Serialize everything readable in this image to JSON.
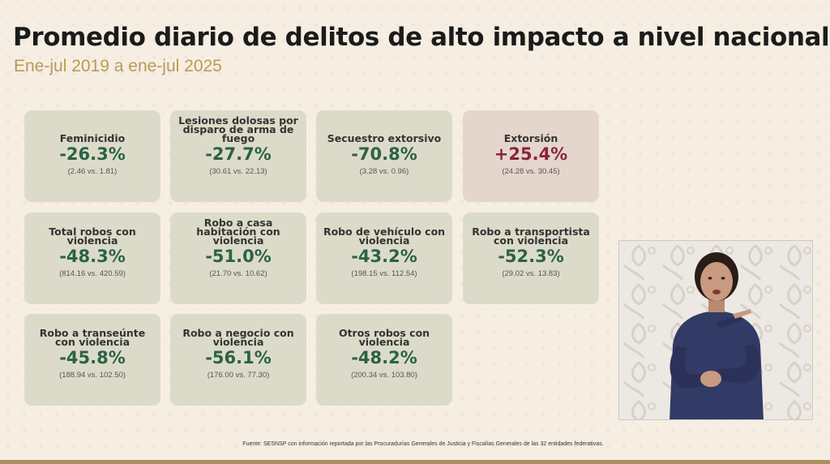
{
  "header": {
    "title": "Promedio diario de delitos de alto impacto a nivel nacional",
    "subtitle": "Ene-jul 2019 a ene-jul 2025"
  },
  "cards": [
    {
      "label": "Feminicidio",
      "value": "-26.3%",
      "detail": "(2.46 vs. 1.81)"
    },
    {
      "label": "Lesiones dolosas por disparo de arma de fuego",
      "value": "-27.7%",
      "detail": "(30.61 vs. 22.13)"
    },
    {
      "label": "Secuestro extorsivo",
      "value": "-70.8%",
      "detail": "(3.28 vs. 0.96)"
    },
    {
      "label": "Extorsión",
      "value": "+25.4%",
      "detail": "(24.28 vs. 30.45)"
    },
    {
      "label": "Total robos con violencia",
      "value": "-48.3%",
      "detail": "(814.16 vs. 420.59)"
    },
    {
      "label": "Robo a casa habitación con violencia",
      "value": "-51.0%",
      "detail": "(21.70 vs. 10.62)"
    },
    {
      "label": "Robo de vehículo con violencia",
      "value": "-43.2%",
      "detail": "(198.15 vs. 112.54)"
    },
    {
      "label": "Robo a transportista con violencia",
      "value": "-52.3%",
      "detail": "(29.02 vs. 13.83)"
    },
    {
      "label": "Robo a transeúnte con violencia",
      "value": "-45.8%",
      "detail": "(188.94 vs. 102.50)"
    },
    {
      "label": "Robo a negocio con violencia",
      "value": "-56.1%",
      "detail": "(176.00 vs. 77.30)"
    },
    {
      "label": "Otros robos con violencia",
      "value": "-48.2%",
      "detail": "(200.34 vs. 103.80)"
    }
  ],
  "footer": {
    "source": "Fuente: SESNSP con información reportada por las Procuradurías Generales de Justicia y Fiscalías Generales de las 32 entidades federativas."
  },
  "colors": {
    "decrease": "#2c6148",
    "increase": "#8b2341",
    "accent": "#b99a55"
  }
}
